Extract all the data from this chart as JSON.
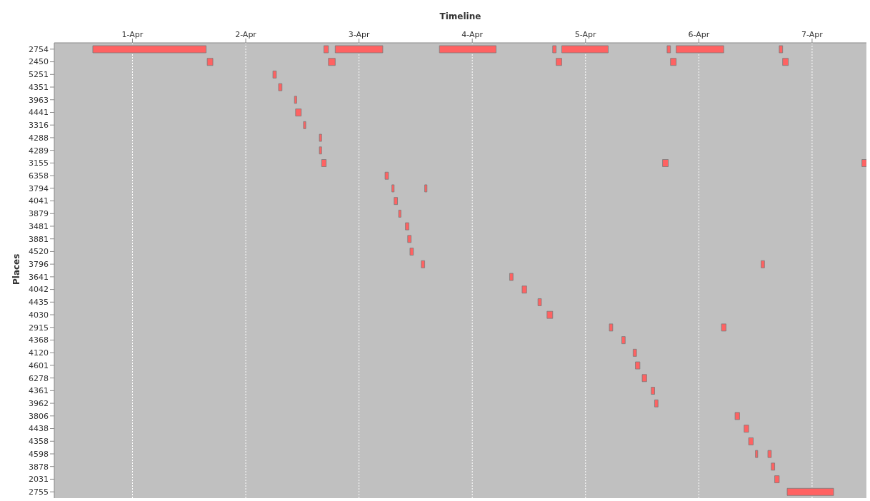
{
  "chart_data": {
    "type": "bar",
    "orientation": "horizontal",
    "xlabel": "Timeline",
    "ylabel": "Places",
    "categories": [
      "2754",
      "2450",
      "5251",
      "4351",
      "3963",
      "4441",
      "3316",
      "4288",
      "4289",
      "3155",
      "6358",
      "3794",
      "4041",
      "3879",
      "3481",
      "3881",
      "4520",
      "3796",
      "3641",
      "4042",
      "4435",
      "4030",
      "2915",
      "4368",
      "4120",
      "4601",
      "6278",
      "4361",
      "3962",
      "3806",
      "4438",
      "4358",
      "4598",
      "3878",
      "2031",
      "2755"
    ],
    "series": [
      {
        "color": "#ff6262",
        "base": [
          11412.65,
          11413.66,
          11414.24,
          11414.29,
          11414.43,
          11414.44,
          11414.51,
          11414.65,
          11414.65,
          11414.67,
          11415.23,
          11415.29,
          11415.31,
          11415.35,
          11415.41,
          11415.43,
          11415.45,
          11415.55,
          11416.33,
          11416.44,
          11416.58,
          11416.66,
          11417.21,
          11417.32,
          11417.42,
          11417.44,
          11417.5,
          11417.58,
          11417.61,
          11418.32,
          11418.4,
          11418.44,
          11418.5,
          11418.64,
          11418.67,
          11418.78
        ],
        "values": [
          1.0,
          0.05,
          0.03,
          0.03,
          0.02,
          0.05,
          0.02,
          0.02,
          0.02,
          0.04,
          0.03,
          0.02,
          0.03,
          0.02,
          0.03,
          0.03,
          0.03,
          0.03,
          0.03,
          0.04,
          0.03,
          0.05,
          0.03,
          0.03,
          0.03,
          0.04,
          0.04,
          0.03,
          0.03,
          0.04,
          0.04,
          0.04,
          0.02,
          0.03,
          0.04,
          0.41
        ]
      },
      {
        "color": "#ff6262",
        "base": [
          11414.69,
          11414.73,
          null,
          null,
          null,
          null,
          null,
          null,
          null,
          11417.68,
          null,
          11415.58,
          null,
          null,
          null,
          null,
          null,
          11418.55,
          null,
          null,
          null,
          null,
          11418.2,
          null,
          null,
          null,
          null,
          null,
          null,
          null,
          null,
          null,
          11418.61,
          null,
          null,
          null
        ],
        "values": [
          0.04,
          0.06,
          null,
          null,
          null,
          null,
          null,
          null,
          null,
          0.05,
          null,
          0.02,
          null,
          null,
          null,
          null,
          null,
          0.03,
          null,
          null,
          null,
          null,
          0.04,
          null,
          null,
          null,
          null,
          null,
          null,
          null,
          null,
          null,
          0.03,
          null,
          null,
          null
        ]
      },
      {
        "color": "#ff6262",
        "base": [
          11414.79,
          11416.74,
          null,
          null,
          null,
          null,
          null,
          null,
          null,
          11419.44,
          null,
          null,
          null,
          null,
          null,
          null,
          null,
          null,
          null,
          null,
          null,
          null,
          null,
          null,
          null,
          null,
          null,
          null,
          null,
          null,
          null,
          null,
          null,
          null,
          null,
          null
        ],
        "values": [
          0.42,
          0.05,
          null,
          null,
          null,
          null,
          null,
          null,
          null,
          0.04,
          null,
          null,
          null,
          null,
          null,
          null,
          null,
          null,
          null,
          null,
          null,
          null,
          null,
          null,
          null,
          null,
          null,
          null,
          null,
          null,
          null,
          null,
          null,
          null,
          null,
          null
        ]
      },
      {
        "color": "#ff6262",
        "base": [
          11415.71,
          11417.75,
          null,
          null,
          null,
          null,
          null,
          null,
          null,
          null,
          null,
          null,
          null,
          null,
          null,
          null,
          null,
          null,
          null,
          null,
          null,
          null,
          null,
          null,
          null,
          null,
          null,
          null,
          null,
          null,
          null,
          null,
          null,
          null,
          null,
          null
        ],
        "values": [
          0.5,
          0.05,
          null,
          null,
          null,
          null,
          null,
          null,
          null,
          null,
          null,
          null,
          null,
          null,
          null,
          null,
          null,
          null,
          null,
          null,
          null,
          null,
          null,
          null,
          null,
          null,
          null,
          null,
          null,
          null,
          null,
          null,
          null,
          null,
          null,
          null
        ]
      },
      {
        "color": "#ff6262",
        "base": [
          11416.71,
          11418.74,
          null,
          null,
          null,
          null,
          null,
          null,
          null,
          null,
          null,
          null,
          null,
          null,
          null,
          null,
          null,
          null,
          null,
          null,
          null,
          null,
          null,
          null,
          null,
          null,
          null,
          null,
          null,
          null,
          null,
          null,
          null,
          null,
          null,
          null
        ],
        "values": [
          0.03,
          0.05,
          null,
          null,
          null,
          null,
          null,
          null,
          null,
          null,
          null,
          null,
          null,
          null,
          null,
          null,
          null,
          null,
          null,
          null,
          null,
          null,
          null,
          null,
          null,
          null,
          null,
          null,
          null,
          null,
          null,
          null,
          null,
          null,
          null,
          null
        ]
      },
      {
        "color": "#ff6262",
        "base": [
          11416.79,
          null,
          null,
          null,
          null,
          null,
          null,
          null,
          null,
          null,
          null,
          null,
          null,
          null,
          null,
          null,
          null,
          null,
          null,
          null,
          null,
          null,
          null,
          null,
          null,
          null,
          null,
          null,
          null,
          null,
          null,
          null,
          null,
          null,
          null,
          null
        ],
        "values": [
          0.41,
          null,
          null,
          null,
          null,
          null,
          null,
          null,
          null,
          null,
          null,
          null,
          null,
          null,
          null,
          null,
          null,
          null,
          null,
          null,
          null,
          null,
          null,
          null,
          null,
          null,
          null,
          null,
          null,
          null,
          null,
          null,
          null,
          null,
          null,
          null
        ]
      },
      {
        "color": "#ff6262",
        "base": [
          11417.72,
          null,
          null,
          null,
          null,
          null,
          null,
          null,
          null,
          null,
          null,
          null,
          null,
          null,
          null,
          null,
          null,
          null,
          null,
          null,
          null,
          null,
          null,
          null,
          null,
          null,
          null,
          null,
          null,
          null,
          null,
          null,
          null,
          null,
          null,
          null
        ],
        "values": [
          0.03,
          null,
          null,
          null,
          null,
          null,
          null,
          null,
          null,
          null,
          null,
          null,
          null,
          null,
          null,
          null,
          null,
          null,
          null,
          null,
          null,
          null,
          null,
          null,
          null,
          null,
          null,
          null,
          null,
          null,
          null,
          null,
          null,
          null,
          null,
          null
        ]
      },
      {
        "color": "#ff6262",
        "base": [
          11417.8,
          null,
          null,
          null,
          null,
          null,
          null,
          null,
          null,
          null,
          null,
          null,
          null,
          null,
          null,
          null,
          null,
          null,
          null,
          null,
          null,
          null,
          null,
          null,
          null,
          null,
          null,
          null,
          null,
          null,
          null,
          null,
          null,
          null,
          null,
          null
        ],
        "values": [
          0.42,
          null,
          null,
          null,
          null,
          null,
          null,
          null,
          null,
          null,
          null,
          null,
          null,
          null,
          null,
          null,
          null,
          null,
          null,
          null,
          null,
          null,
          null,
          null,
          null,
          null,
          null,
          null,
          null,
          null,
          null,
          null,
          null,
          null,
          null,
          null
        ]
      },
      {
        "color": "#ff6262",
        "base": [
          11418.71,
          null,
          null,
          null,
          null,
          null,
          null,
          null,
          null,
          null,
          null,
          null,
          null,
          null,
          null,
          null,
          null,
          null,
          null,
          null,
          null,
          null,
          null,
          null,
          null,
          null,
          null,
          null,
          null,
          null,
          null,
          null,
          null,
          null,
          null,
          null
        ],
        "values": [
          0.03,
          null,
          null,
          null,
          null,
          null,
          null,
          null,
          null,
          null,
          null,
          null,
          null,
          null,
          null,
          null,
          null,
          null,
          null,
          null,
          null,
          null,
          null,
          null,
          null,
          null,
          null,
          null,
          null,
          null,
          null,
          null,
          null,
          null,
          null,
          null
        ]
      }
    ],
    "xlim": [
      "--03-31T07:26",
      "--04-07T11:31"
    ],
    "xticks": [
      {
        "value": "--04-01",
        "label": "1-Apr"
      },
      {
        "value": "--04-02",
        "label": "2-Apr"
      },
      {
        "value": "--04-03",
        "label": "3-Apr"
      },
      {
        "value": "--04-04",
        "label": "4-Apr"
      },
      {
        "value": "--04-05",
        "label": "5-Apr"
      },
      {
        "value": "--04-06",
        "label": "6-Apr"
      },
      {
        "value": "--04-07",
        "label": "7-Apr"
      }
    ],
    "grid": "x"
  }
}
